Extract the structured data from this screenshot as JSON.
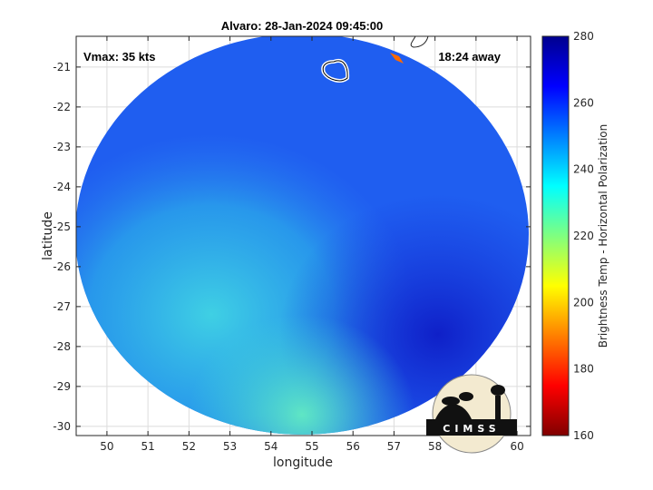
{
  "chart_data": {
    "type": "heatmap",
    "title": "Alvaro: 28-Jan-2024 09:45:00",
    "xlabel": "longitude",
    "ylabel": "latitude",
    "xlim": [
      49.25,
      60.33
    ],
    "ylim": [
      -30.23,
      -20.23
    ],
    "xticks": [
      50,
      51,
      52,
      53,
      54,
      55,
      56,
      57,
      58,
      59,
      60
    ],
    "yticks": [
      -21,
      -22,
      -23,
      -24,
      -25,
      -26,
      -27,
      -28,
      -29,
      -30
    ],
    "grid": true,
    "annotations": {
      "vmax": "Vmax: 35 kts",
      "time_away": "18:24 away"
    },
    "colorbar": {
      "label": "Brightness Temp - Horizontal Polarization",
      "range": [
        160,
        280
      ],
      "ticks": [
        280,
        260,
        240,
        220,
        200,
        180,
        160
      ],
      "colormap": "jet"
    },
    "logo": "CIMSS"
  },
  "colors": {
    "disk_main": "#1f5ef0",
    "disk_warm": "#1a3ad8",
    "disk_cool": "#22b8ea",
    "grid": "#dcdcdc"
  }
}
